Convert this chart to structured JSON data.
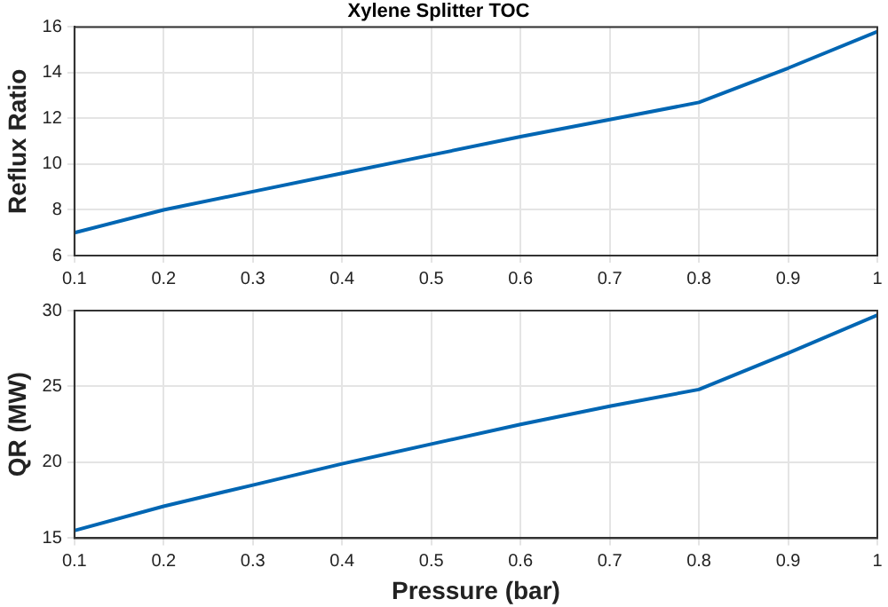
{
  "chart_data": [
    {
      "type": "line",
      "title": "Xylene Splitter TOC",
      "ylabel": "Reflux Ratio",
      "x": [
        0.1,
        0.2,
        0.3,
        0.4,
        0.5,
        0.6,
        0.7,
        0.8,
        0.9,
        1
      ],
      "series": [
        {
          "color": "#0066b3",
          "values": [
            7.0,
            8.0,
            8.8,
            9.6,
            10.4,
            11.2,
            11.95,
            12.7,
            14.2,
            15.8
          ]
        }
      ],
      "xlim": [
        0.1,
        1
      ],
      "xticks": [
        0.1,
        0.2,
        0.3,
        0.4,
        0.5,
        0.6,
        0.7,
        0.8,
        0.9,
        1
      ],
      "ylim": [
        6,
        16
      ],
      "yticks": [
        6,
        8,
        10,
        12,
        14,
        16
      ],
      "grid": true,
      "legend": false
    },
    {
      "type": "line",
      "xlabel": "Pressure (bar)",
      "ylabel": "QR (MW)",
      "x": [
        0.1,
        0.2,
        0.3,
        0.4,
        0.5,
        0.6,
        0.7,
        0.8,
        0.9,
        1
      ],
      "series": [
        {
          "color": "#0066b3",
          "values": [
            15.5,
            17.1,
            18.5,
            19.9,
            21.2,
            22.5,
            23.7,
            24.8,
            27.2,
            29.7
          ]
        }
      ],
      "xlim": [
        0.1,
        1
      ],
      "xticks": [
        0.1,
        0.2,
        0.3,
        0.4,
        0.5,
        0.6,
        0.7,
        0.8,
        0.9,
        1
      ],
      "ylim": [
        15,
        30
      ],
      "yticks": [
        15,
        20,
        25,
        30
      ],
      "grid": true,
      "legend": false
    }
  ]
}
